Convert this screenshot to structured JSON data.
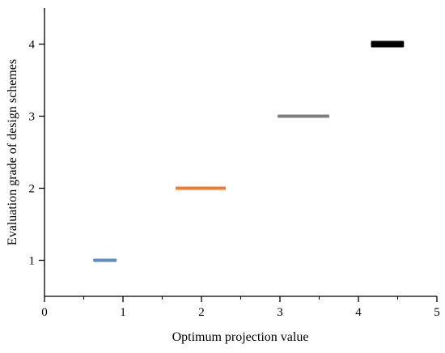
{
  "chart_data": {
    "type": "scatter",
    "marker": "horizontal-segment",
    "title": "",
    "xlabel": "Optimum projection value",
    "ylabel": "Evaluation grade of design schemes",
    "xlim": [
      0,
      5
    ],
    "ylim": [
      0.5,
      4.5
    ],
    "xticks": [
      0,
      1,
      2,
      3,
      4,
      5
    ],
    "xtick_labels": [
      "0",
      "1",
      "2",
      "3",
      "4",
      "5"
    ],
    "xminor_ticks": [
      0.5,
      1.5,
      2.5,
      3.5,
      4.5
    ],
    "yticks": [
      1,
      2,
      3,
      4
    ],
    "ytick_labels": [
      "1",
      "2",
      "3",
      "4"
    ],
    "grid": false,
    "legend": "none",
    "series": [
      {
        "grade": 1,
        "x_start": 0.62,
        "x_end": 0.92,
        "color": "#5b8fc7"
      },
      {
        "grade": 2,
        "x_start": 1.67,
        "x_end": 2.31,
        "color": "#ed7d31"
      },
      {
        "grade": 3,
        "x_start": 2.97,
        "x_end": 3.63,
        "color": "#7f7f7f"
      },
      {
        "grade": 4,
        "x_start": 4.16,
        "x_end": 4.58,
        "color": "#000000"
      }
    ]
  }
}
